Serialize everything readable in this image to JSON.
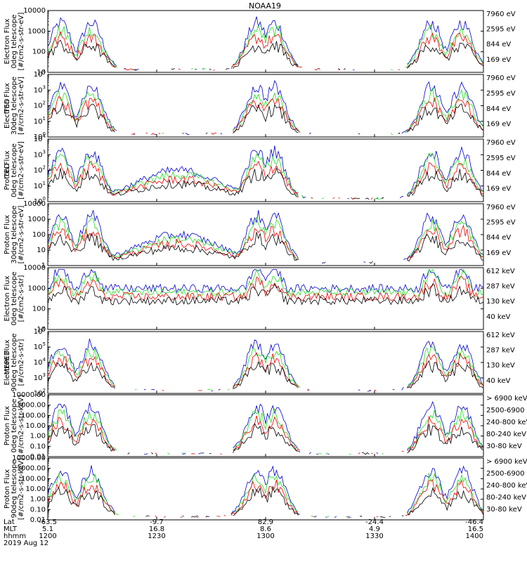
{
  "title": "NOAA19",
  "colors": {
    "black": "#000000",
    "red": "#ee0000",
    "green": "#22dd22",
    "blue": "#0000cc",
    "magenta": "#cc00cc"
  },
  "left_labels": {
    "ted": "TED",
    "meped": "MEPED"
  },
  "footer": {
    "row_labels": [
      "Lat",
      "MLT",
      "hhmm"
    ],
    "date": "2019 Aug 12",
    "columns": [
      {
        "lat": "-63.5",
        "mlt": "5.1",
        "hhmm": "1200"
      },
      {
        "lat": "-9.7",
        "mlt": "16.8",
        "hhmm": "1230"
      },
      {
        "lat": "82.9",
        "mlt": "8.6",
        "hhmm": "1300"
      },
      {
        "lat": "-24.4",
        "mlt": "4.9",
        "hhmm": "1330"
      },
      {
        "lat": "-46.4",
        "mlt": "16.5",
        "hhmm": "1400"
      }
    ]
  },
  "chart_data": [
    {
      "type": "line",
      "ylabel": [
        "Electron Flux",
        "0deg telescope",
        "[#/cm2-s-str-eV]"
      ],
      "group": "",
      "log": true,
      "yticks": [
        "10",
        "100",
        "1000",
        "10000"
      ],
      "ymin_exp": 0.6,
      "ymax_exp": 4,
      "legend": [
        {
          "text": "7960 eV",
          "color": "black"
        },
        {
          "text": "2595 eV",
          "color": "red"
        },
        {
          "text": "844 eV",
          "color": "green"
        },
        {
          "text": "169 eV",
          "color": "blue"
        }
      ]
    },
    {
      "type": "line",
      "ylabel": [
        "Electron Flux",
        "30deg telescope",
        "[#/cm2-s-str-eV]"
      ],
      "group": "TED",
      "log": true,
      "yticks": [
        "10",
        "10",
        "10",
        "10",
        "10"
      ],
      "ysup": [
        "0",
        "1",
        "2",
        "3",
        "4"
      ],
      "ymin_exp": 0,
      "ymax_exp": 5,
      "legend": [
        {
          "text": "7960 eV",
          "color": "black"
        },
        {
          "text": "2595 eV",
          "color": "red"
        },
        {
          "text": "844 eV",
          "color": "green"
        },
        {
          "text": "169 eV",
          "color": "blue"
        }
      ]
    },
    {
      "type": "line",
      "ylabel": [
        "Proton Flux",
        "0deg telescope",
        "[#/cm2-s-str-eV]"
      ],
      "group": "TED",
      "log": true,
      "yticks": [
        "10",
        "10",
        "10",
        "10",
        "10"
      ],
      "ysup": [
        "0",
        "1",
        "2",
        "3",
        "4"
      ],
      "ymin_exp": 0,
      "ymax_exp": 5,
      "legend": [
        {
          "text": "7960 eV",
          "color": "black"
        },
        {
          "text": "2595 eV",
          "color": "red"
        },
        {
          "text": "844 eV",
          "color": "green"
        },
        {
          "text": "169 eV",
          "color": "blue"
        }
      ]
    },
    {
      "type": "line",
      "ylabel": [
        "Proton Flux",
        "30deg telescope",
        "[#/cm2-s-str-eV]"
      ],
      "group": "",
      "log": true,
      "yticks": [
        "1",
        "10",
        "100",
        "1000",
        "10000"
      ],
      "ymin_exp": 0,
      "ymax_exp": 4,
      "legend": [
        {
          "text": "7960 eV",
          "color": "black"
        },
        {
          "text": "2595 eV",
          "color": "red"
        },
        {
          "text": "844 eV",
          "color": "green"
        },
        {
          "text": "169 eV",
          "color": "blue"
        }
      ]
    },
    {
      "type": "line",
      "ylabel": [
        "Electron Flux",
        "0deg telescope",
        "[#/cm2-s-str]"
      ],
      "group": "",
      "log": true,
      "yticks": [
        "10",
        "100",
        "1000",
        "10000"
      ],
      "ymin_exp": 1,
      "ymax_exp": 4,
      "legend": [
        {
          "text": "612 keV",
          "color": "black"
        },
        {
          "text": "287 keV",
          "color": "red"
        },
        {
          "text": "130 keV",
          "color": "green"
        },
        {
          "text": "40 keV",
          "color": "blue"
        }
      ]
    },
    {
      "type": "line",
      "ylabel": [
        "Electron Flux",
        "90deg telescope",
        "[#/cm2-s-str]"
      ],
      "group": "MEPED",
      "log": true,
      "yticks": [
        "10",
        "10",
        "10",
        "10",
        "10"
      ],
      "ysup": [
        "2",
        "3",
        "4",
        "5",
        "6"
      ],
      "ymin_exp": 2,
      "ymax_exp": 6,
      "legend": [
        {
          "text": "612 keV",
          "color": "black"
        },
        {
          "text": "287 keV",
          "color": "red"
        },
        {
          "text": "130 keV",
          "color": "green"
        },
        {
          "text": "40 keV",
          "color": "blue"
        }
      ]
    },
    {
      "type": "line",
      "ylabel": [
        "Proton Flux",
        "0deg telescope",
        "[#/cm2-s-str-keV]"
      ],
      "group": "",
      "log": true,
      "yticks": [
        "0.01",
        "0.10",
        "1.00",
        "10.00",
        "100.00",
        "1000.00",
        "10000.00"
      ],
      "ymin_exp": -2,
      "ymax_exp": 4,
      "legend": [
        {
          "text": "> 6900 keV",
          "color": "magenta"
        },
        {
          "text": "2500-6900",
          "color": "black"
        },
        {
          "text": "240-800 keV",
          "color": "red"
        },
        {
          "text": "80-240 keV",
          "color": "green"
        },
        {
          "text": "30-80 keV",
          "color": "blue"
        }
      ]
    },
    {
      "type": "line",
      "ylabel": [
        "Proton Flux",
        "90deg telescope",
        "[#/cm2-s-str-keV]"
      ],
      "group": "",
      "log": true,
      "yticks": [
        "0.01",
        "0.10",
        "1.00",
        "10.00",
        "100.00",
        "1000.00",
        "10000.00"
      ],
      "ymin_exp": -2,
      "ymax_exp": 4,
      "legend": [
        {
          "text": "> 6900 keV",
          "color": "magenta"
        },
        {
          "text": "2500-6900",
          "color": "black"
        },
        {
          "text": "240-800 keV",
          "color": "red"
        },
        {
          "text": "80-240 keV",
          "color": "green"
        },
        {
          "text": "30-80 keV",
          "color": "blue"
        }
      ]
    }
  ]
}
